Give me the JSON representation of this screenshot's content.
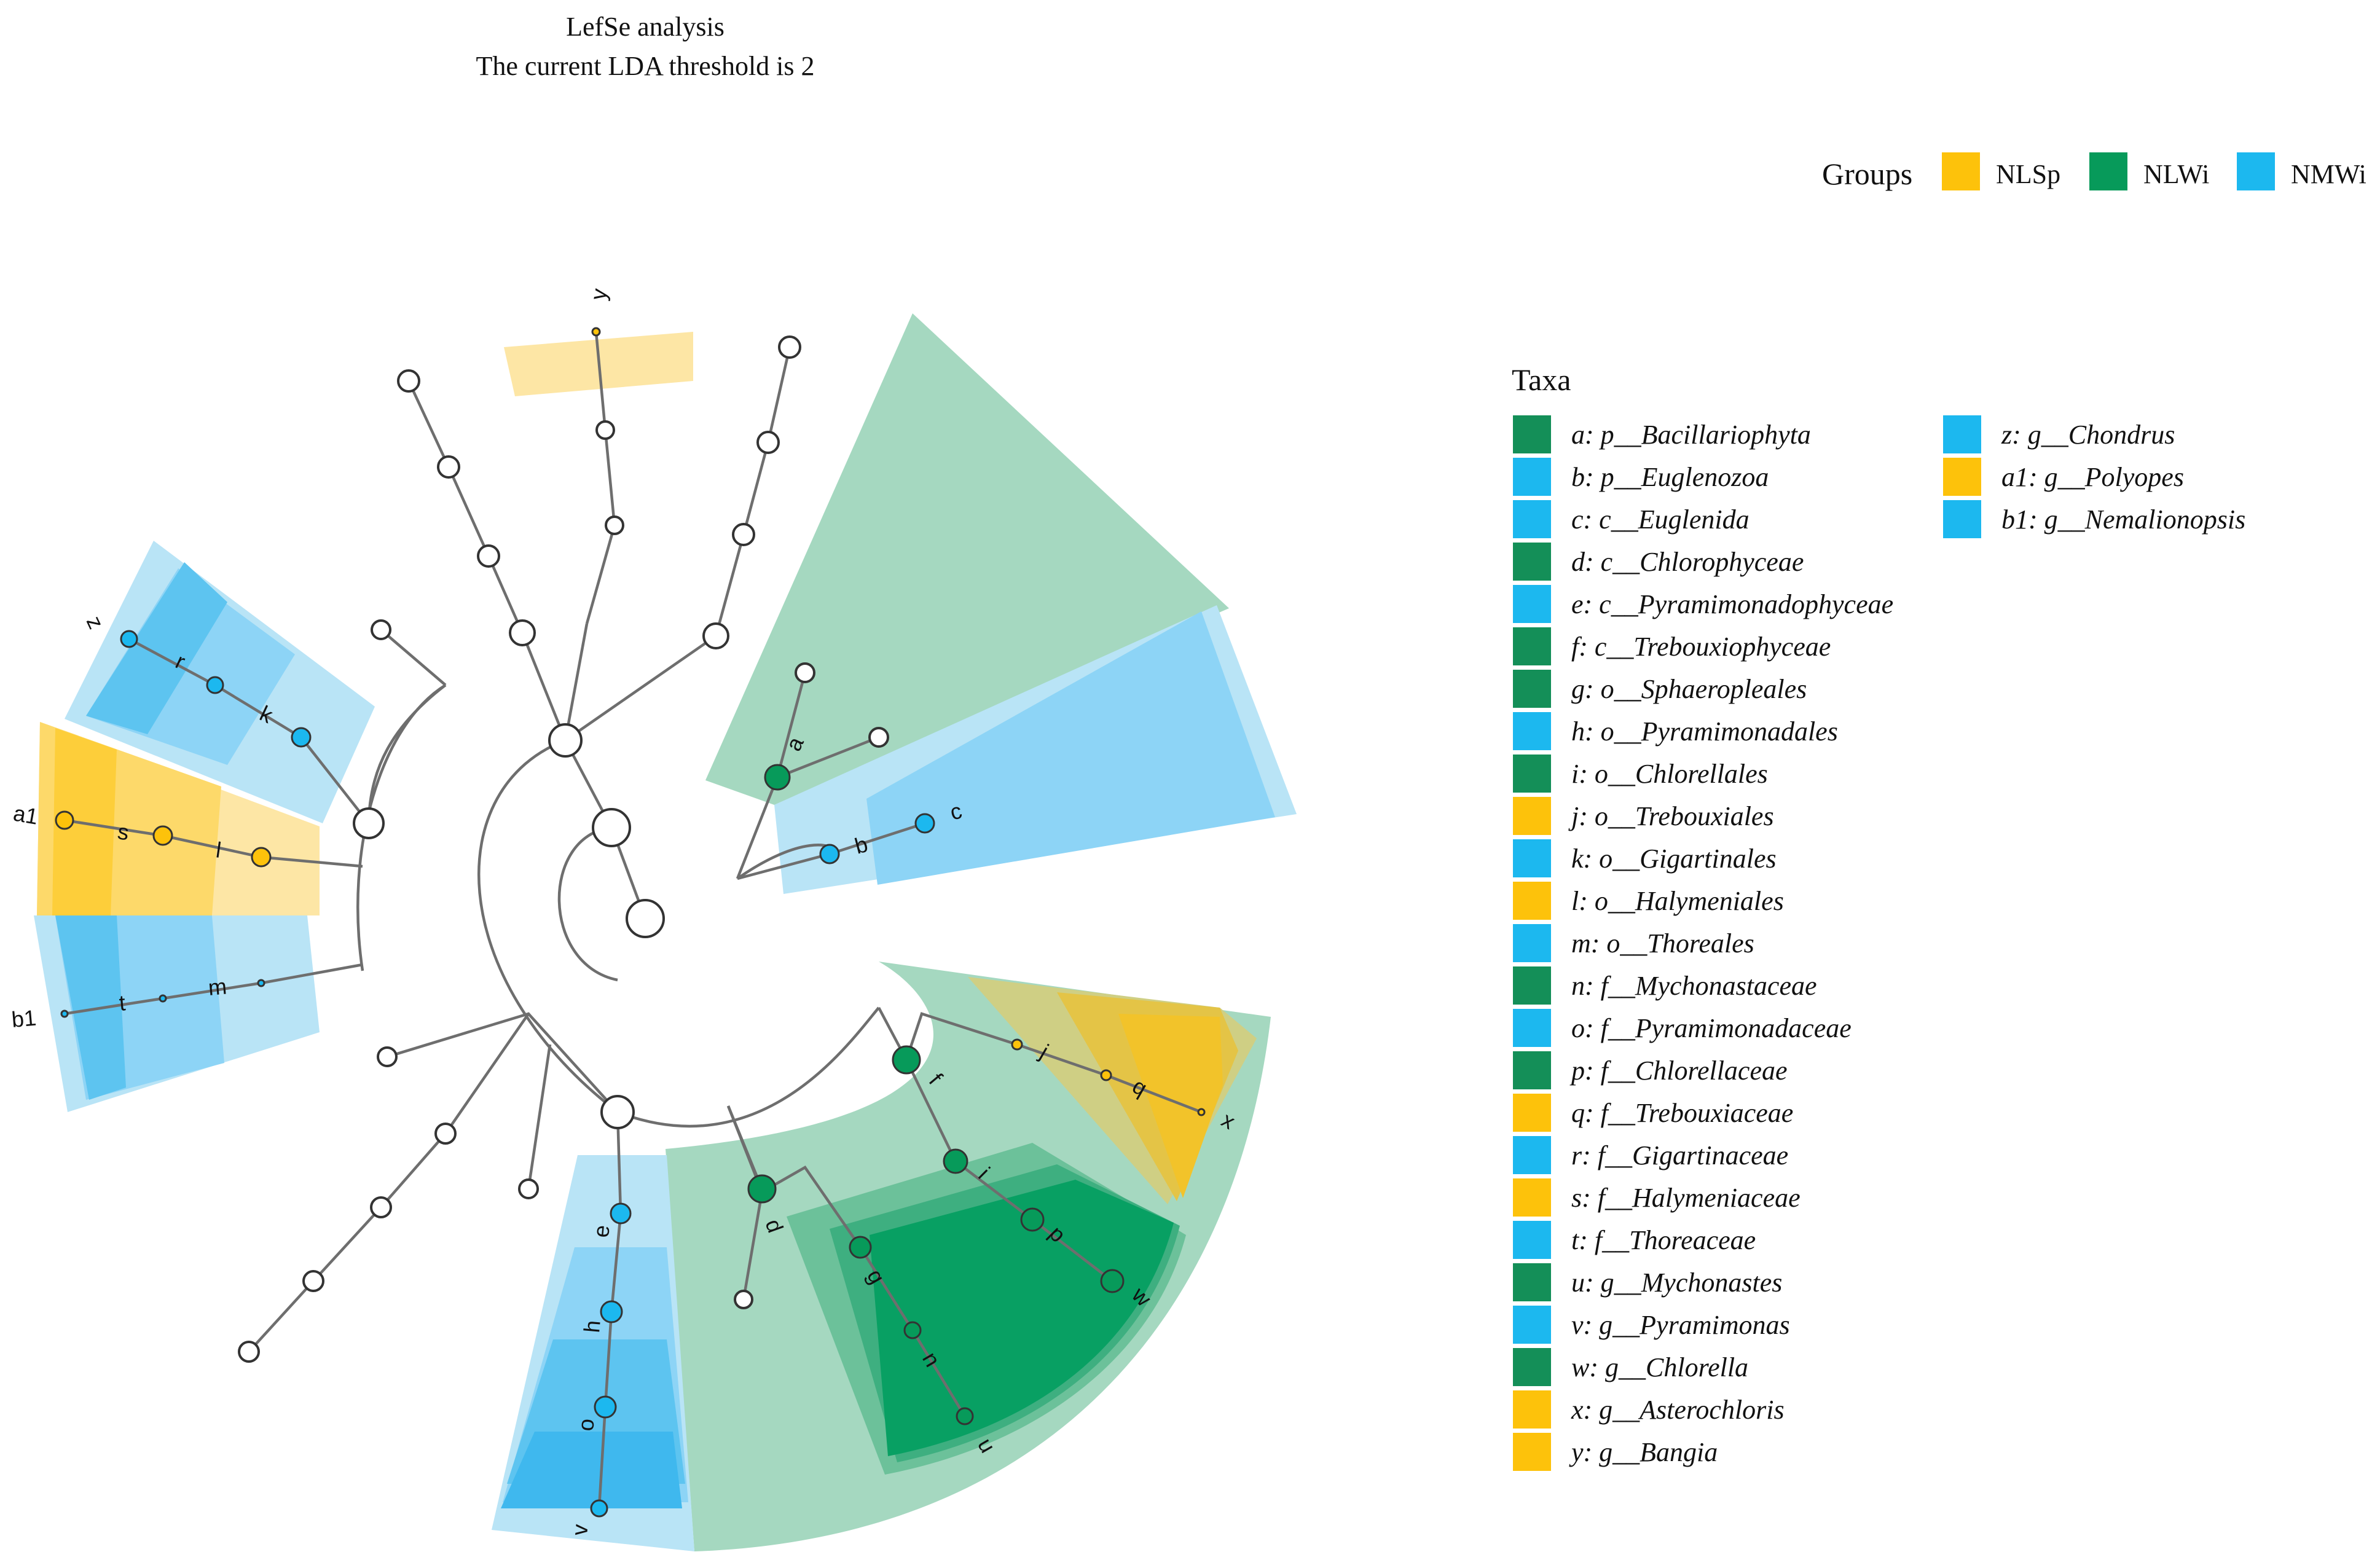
{
  "title": [
    "LefSe analysis",
    "The current LDA threshold is 2"
  ],
  "groups_legend": {
    "heading": "Groups",
    "items": [
      {
        "name": "NLSp",
        "color": "#FDC20B"
      },
      {
        "name": "NLWi",
        "color": "#079A5A"
      },
      {
        "name": "NMWi",
        "color": "#1CB8EF"
      }
    ]
  },
  "taxa_legend": {
    "heading": "Taxa",
    "items": [
      {
        "key": "a",
        "text": "a: p__Bacillariophyta",
        "group": "NLWi"
      },
      {
        "key": "b",
        "text": "b: p__Euglenozoa",
        "group": "NMWi"
      },
      {
        "key": "c",
        "text": "c: c__Euglenida",
        "group": "NMWi"
      },
      {
        "key": "d",
        "text": "d: c__Chlorophyceae",
        "group": "NLWi"
      },
      {
        "key": "e",
        "text": "e: c__Pyramimonadophyceae",
        "group": "NMWi"
      },
      {
        "key": "f",
        "text": "f: c__Trebouxiophyceae",
        "group": "NLWi"
      },
      {
        "key": "g",
        "text": "g: o__Sphaeropleales",
        "group": "NLWi"
      },
      {
        "key": "h",
        "text": "h: o__Pyramimonadales",
        "group": "NMWi"
      },
      {
        "key": "i",
        "text": "i: o__Chlorellales",
        "group": "NLWi"
      },
      {
        "key": "j",
        "text": "j: o__Trebouxiales",
        "group": "NLSp"
      },
      {
        "key": "k",
        "text": "k: o__Gigartinales",
        "group": "NMWi"
      },
      {
        "key": "l",
        "text": "l: o__Halymeniales",
        "group": "NLSp"
      },
      {
        "key": "m",
        "text": "m: o__Thoreales",
        "group": "NMWi"
      },
      {
        "key": "n",
        "text": "n: f__Mychonastaceae",
        "group": "NLWi"
      },
      {
        "key": "o",
        "text": "o: f__Pyramimonadaceae",
        "group": "NMWi"
      },
      {
        "key": "p",
        "text": "p: f__Chlorellaceae",
        "group": "NLWi"
      },
      {
        "key": "q",
        "text": "q: f__Trebouxiaceae",
        "group": "NLSp"
      },
      {
        "key": "r",
        "text": "r: f__Gigartinaceae",
        "group": "NMWi"
      },
      {
        "key": "s",
        "text": "s: f__Halymeniaceae",
        "group": "NLSp"
      },
      {
        "key": "t",
        "text": "t: f__Thoreaceae",
        "group": "NMWi"
      },
      {
        "key": "u",
        "text": "u: g__Mychonastes",
        "group": "NLWi"
      },
      {
        "key": "v",
        "text": "v: g__Pyramimonas",
        "group": "NMWi"
      },
      {
        "key": "w",
        "text": "w: g__Chlorella",
        "group": "NLWi"
      },
      {
        "key": "x",
        "text": "x: g__Asterochloris",
        "group": "NLSp"
      },
      {
        "key": "y",
        "text": "y: g__Bangia",
        "group": "NLSp"
      },
      {
        "key": "z",
        "text": "z: g__Chondrus",
        "group": "NMWi"
      },
      {
        "key": "a1",
        "text": "a1: g__Polyopes",
        "group": "NLSp"
      },
      {
        "key": "b1",
        "text": "b1: g__Nemalionopsis",
        "group": "NMWi"
      }
    ]
  }
}
